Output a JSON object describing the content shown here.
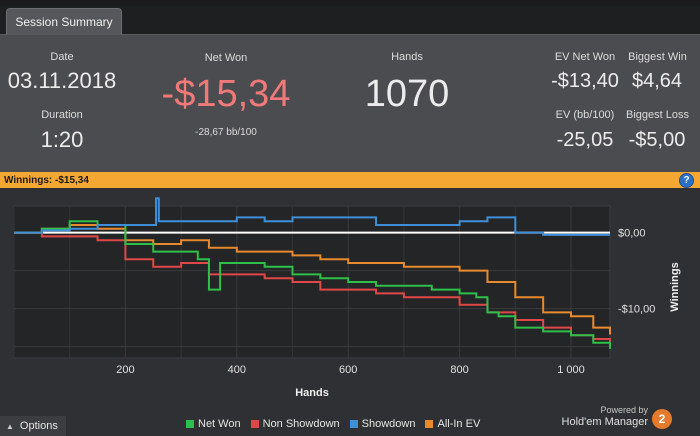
{
  "tab": {
    "label": "Session Summary"
  },
  "summary": {
    "date_label": "Date",
    "date_value": "03.11.2018",
    "duration_label": "Duration",
    "duration_value": "1:20",
    "netwon_label": "Net Won",
    "netwon_value": "-$15,34",
    "bb_value": "-28,67 bb/100",
    "hands_label": "Hands",
    "hands_value": "1070",
    "evnet_label": "EV Net Won",
    "evnet_value": "-$13,40",
    "biggestwin_label": "Biggest Win",
    "biggestwin_value": "$4,64",
    "evbb_label": "EV (bb/100)",
    "evbb_value": "-25,05",
    "biggestloss_label": "Biggest Loss",
    "biggestloss_value": "-$5,00"
  },
  "winnings_bar": {
    "label": "Winnings:",
    "value": "-$15,34",
    "help": "?"
  },
  "options": {
    "label": "Options",
    "arrow": "▲"
  },
  "branding": {
    "powered": "Powered by",
    "name": "Hold'em Manager",
    "logo": "2"
  },
  "colors": {
    "net_won": "#2fc04a",
    "non_showdown": "#e04848",
    "showdown": "#3f8fd8",
    "allin_ev": "#e88a2e",
    "accent": "#f4a733"
  },
  "chart_data": {
    "type": "line",
    "xlabel": "Hands",
    "ylabel": "Winnings",
    "xlim": [
      0,
      1070
    ],
    "ylim": [
      -16.5,
      3.5
    ],
    "x_ticks": [
      200,
      400,
      600,
      800,
      1000
    ],
    "x_tick_labels": [
      "200",
      "400",
      "600",
      "800",
      "1 000"
    ],
    "y_ticks": [
      0,
      -10
    ],
    "y_tick_labels": [
      "$0,00",
      "-$10,00"
    ],
    "series": [
      {
        "name": "Net Won",
        "x": [
          0,
          50,
          100,
          150,
          200,
          250,
          300,
          330,
          350,
          370,
          400,
          450,
          500,
          550,
          600,
          650,
          700,
          750,
          800,
          830,
          850,
          870,
          900,
          950,
          1000,
          1040,
          1070
        ],
        "y": [
          0,
          0.5,
          1.5,
          1.0,
          -1.5,
          -2.5,
          -2.5,
          -3.5,
          -7.5,
          -4.0,
          -4.0,
          -4.5,
          -5.5,
          -6.0,
          -6.5,
          -7.0,
          -7.0,
          -7.5,
          -8.0,
          -8.5,
          -10.5,
          -11.0,
          -12.5,
          -13.0,
          -13.5,
          -14.5,
          -15.3
        ]
      },
      {
        "name": "Non Showdown",
        "x": [
          0,
          50,
          100,
          150,
          200,
          250,
          300,
          350,
          400,
          450,
          500,
          550,
          600,
          650,
          700,
          750,
          800,
          850,
          900,
          950,
          1000,
          1040,
          1070
        ],
        "y": [
          0,
          -0.5,
          -0.5,
          -1.0,
          -3.5,
          -4.5,
          -4.0,
          -5.5,
          -5.5,
          -6.0,
          -6.5,
          -7.5,
          -7.5,
          -8.0,
          -8.5,
          -8.5,
          -9.5,
          -10.5,
          -11.5,
          -12.5,
          -13.5,
          -14.0,
          -14.5
        ]
      },
      {
        "name": "Showdown",
        "x": [
          0,
          50,
          100,
          150,
          200,
          240,
          255,
          260,
          300,
          350,
          400,
          450,
          500,
          550,
          600,
          650,
          700,
          750,
          800,
          850,
          890,
          900,
          950,
          1000,
          1070
        ],
        "y": [
          0,
          0.3,
          0.5,
          1.0,
          1.0,
          1.0,
          4.5,
          1.5,
          1.5,
          1.5,
          2.0,
          1.5,
          2.0,
          2.0,
          2.0,
          1.0,
          1.0,
          1.0,
          1.5,
          2.0,
          2.0,
          0,
          -0.3,
          -0.3,
          -0.3
        ]
      },
      {
        "name": "All-In EV",
        "x": [
          0,
          50,
          100,
          150,
          200,
          250,
          300,
          350,
          400,
          450,
          500,
          550,
          600,
          650,
          700,
          750,
          800,
          850,
          900,
          950,
          1000,
          1040,
          1070
        ],
        "y": [
          0,
          0.5,
          1.0,
          0.5,
          -1.0,
          -1.5,
          -1.0,
          -2.0,
          -2.5,
          -2.5,
          -3.0,
          -3.5,
          -4.0,
          -4.0,
          -4.5,
          -4.5,
          -5.0,
          -6.5,
          -8.5,
          -10.5,
          -11.0,
          -12.5,
          -13.4
        ]
      }
    ]
  }
}
